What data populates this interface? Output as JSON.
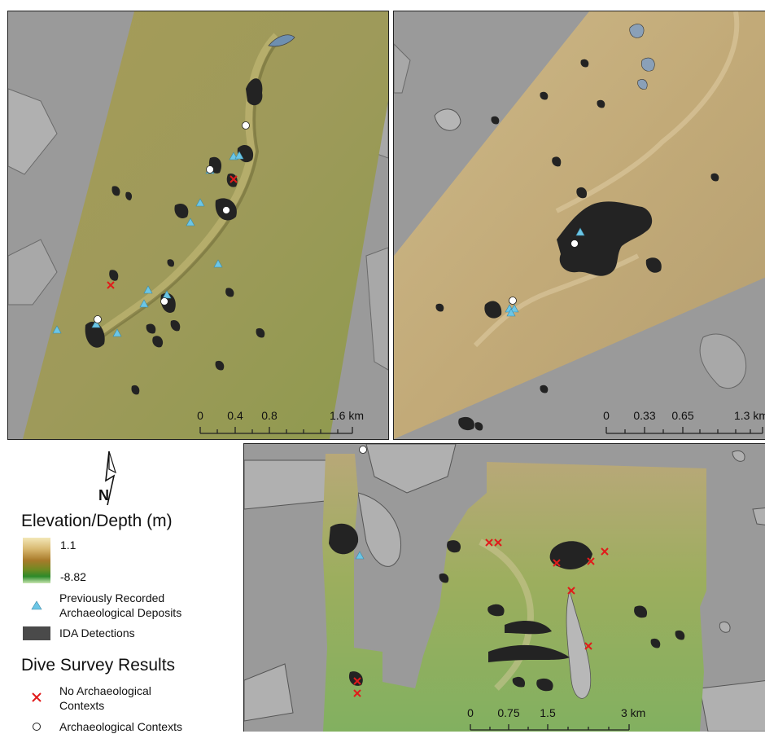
{
  "panels": {
    "a": {
      "scale": {
        "ticks": [
          "0",
          "0.4",
          "0.8"
        ],
        "end_label": "1.6 km"
      }
    },
    "b": {
      "scale": {
        "ticks": [
          "0",
          "0.33",
          "0.65"
        ],
        "end_label": "1.3 km"
      }
    },
    "c": {
      "scale": {
        "ticks": [
          "0",
          "0.75",
          "1.5"
        ],
        "end_label": "3 km"
      }
    }
  },
  "legend": {
    "north_label": "N",
    "elevation": {
      "title": "Elevation/Depth (m)",
      "max_label": "1.1",
      "min_label": "-8.82"
    },
    "previously_recorded": {
      "line1": "Previously Recorded",
      "line2": "Archaeological Deposits"
    },
    "ida": {
      "label": "IDA Detections"
    },
    "dive": {
      "title": "Dive Survey Results",
      "no_context": {
        "line1": "No Archaeological",
        "line2": "Contexts"
      },
      "context": {
        "label": "Archaeological Contexts"
      }
    }
  },
  "colors": {
    "background_gray": "#9a9a9a",
    "land_gray": "#c8c8c8",
    "terrain_olive": "#9c9a56",
    "terrain_tan": "#c2aa78",
    "terrain_green": "#8fae52",
    "ida_dark": "#232323",
    "triangle": "#6cc6e6",
    "cross": "#e11b1b",
    "circle": "#ffffff"
  }
}
